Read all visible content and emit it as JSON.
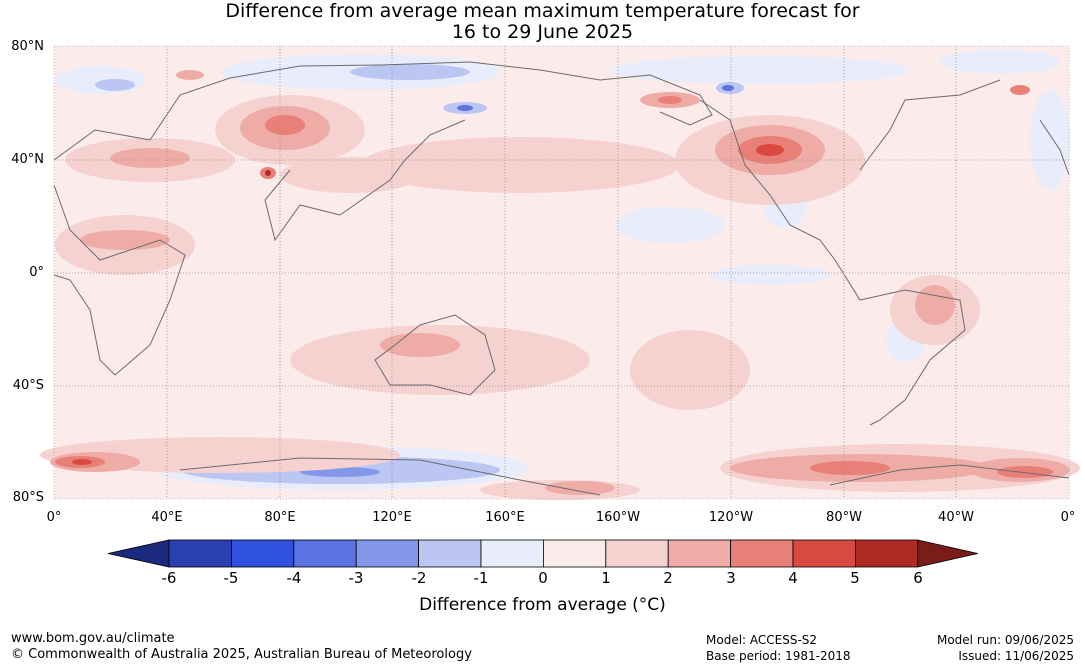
{
  "title": {
    "line1": "Difference from average mean maximum temperature forecast for",
    "line2": "16 to 29 June 2025"
  },
  "map": {
    "lat_labels": [
      "80°N",
      "40°N",
      "0°",
      "40°S",
      "80°S"
    ],
    "lon_labels": [
      "0°",
      "40°E",
      "80°E",
      "120°E",
      "160°E",
      "160°W",
      "120°W",
      "80°W",
      "40°W",
      "0°"
    ]
  },
  "colorbar": {
    "tick_labels": [
      "-6",
      "-5",
      "-4",
      "-3",
      "-2",
      "-1",
      "0",
      "1",
      "2",
      "3",
      "4",
      "5",
      "6"
    ],
    "colors": [
      "#1b2a7c",
      "#2a40b0",
      "#3050e0",
      "#5a72e2",
      "#8296ea",
      "#bcc6f2",
      "#e8ecfb",
      "#fbeceb",
      "#f5d2d0",
      "#efaca7",
      "#e88078",
      "#d84a40",
      "#ae2b24",
      "#7a1c18"
    ],
    "label": "Difference from average (°C)"
  },
  "footer": {
    "website": "www.bom.gov.au/climate",
    "copyright": "© Commonwealth of Australia 2025, Australian Bureau of Meteorology",
    "model": "Model: ACCESS-S2",
    "base_period": "Base period: 1981-2018",
    "model_run": "Model run: 09/06/2025",
    "issued": "Issued: 11/06/2025"
  }
}
